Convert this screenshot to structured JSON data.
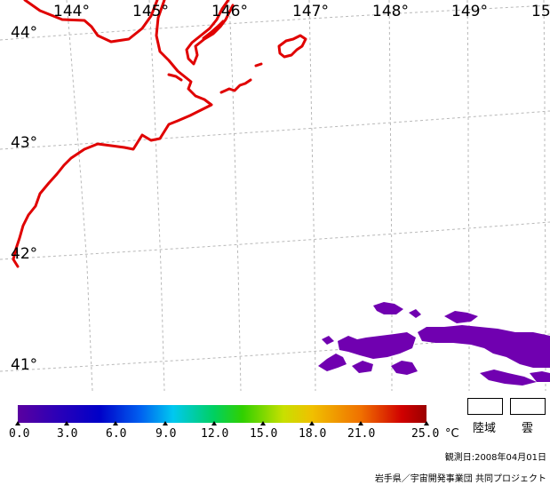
{
  "map": {
    "longitude_labels": [
      "144°",
      "145°",
      "146°",
      "147°",
      "148°",
      "149°",
      "15"
    ],
    "latitude_labels": [
      "44°",
      "43°",
      "42°",
      "41°"
    ],
    "coast_color": "#e00000",
    "sst_patch_color": "#7000b0",
    "grid_color": "#b8b8b8"
  },
  "colorbar": {
    "ticks": [
      "0.0",
      "3.0",
      "6.0",
      "9.0",
      "12.0",
      "15.0",
      "18.0",
      "21.0",
      "25.0"
    ],
    "unit": "°C",
    "range": [
      0,
      25
    ]
  },
  "legend": {
    "land_label": "陸域",
    "cloud_label": "雲"
  },
  "footer": {
    "observation_date": "観測日:2008年04月01日",
    "credit": "岩手県／宇宙開発事業団 共同プロジェクト"
  }
}
